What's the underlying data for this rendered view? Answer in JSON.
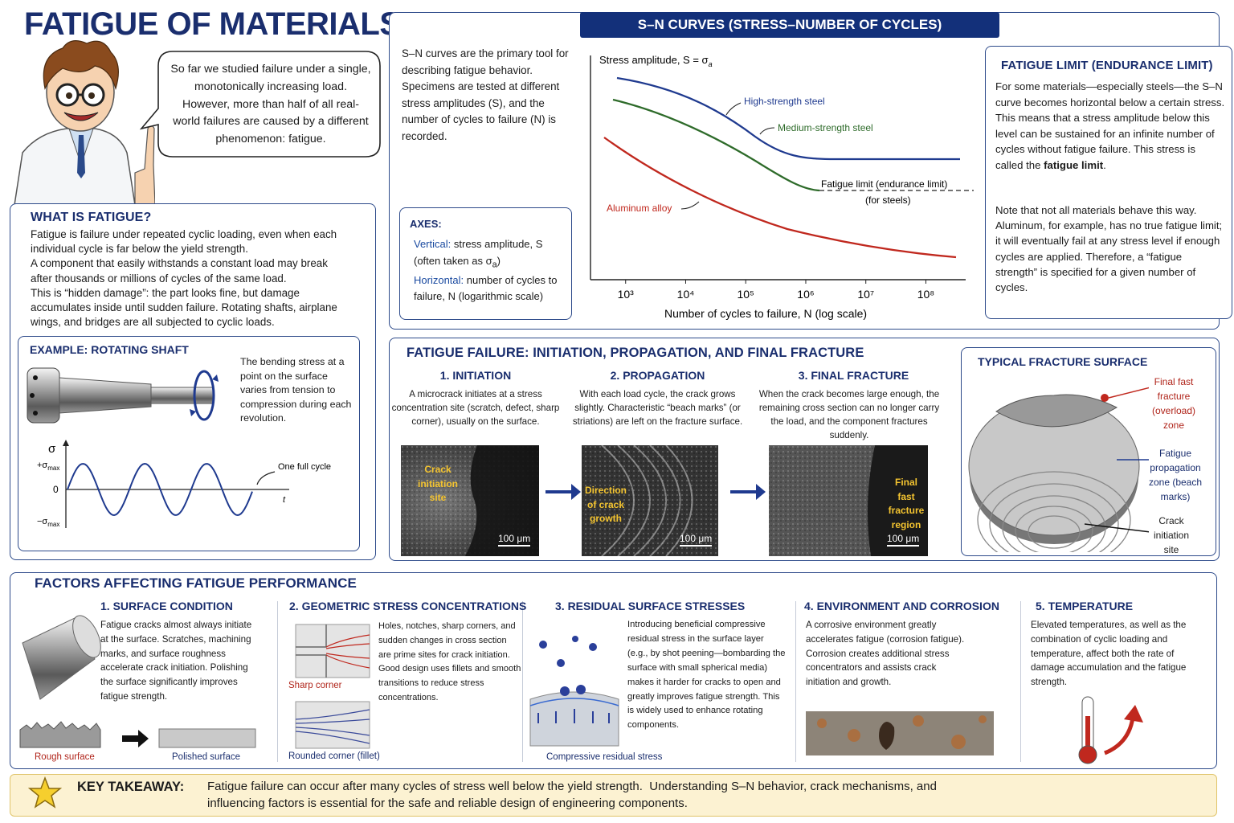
{
  "title": "FATIGUE OF MATERIALS",
  "speech": "So far we studied failure under a single, monotonically increasing load. However, more than half of all real-world failures are caused by a different phenomenon: fatigue.",
  "what_is": {
    "heading": "WHAT IS FATIGUE?",
    "paragraphs": [
      "Fatigue is failure under repeated cyclic loading, even when each individual cycle is far below the yield strength.",
      "A component that easily withstands a constant load may break after thousands or millions of cycles of the same load.",
      "This is “hidden damage”: the part looks fine, but damage accumulates inside until sudden failure. Rotating shafts, airplane wings, and bridges are all subjected to cyclic loads."
    ]
  },
  "example": {
    "heading": "EXAMPLE: ROTATING SHAFT",
    "text": "The bending stress at a point on the surface varies from tension to compression during each revolution.",
    "axis_y": "σ",
    "plus": {
      "sym": "+σ",
      "sub": "max"
    },
    "zero": "0",
    "minus": {
      "sym": "−σ",
      "sub": "max"
    },
    "axis_t": "t",
    "cycle_label": "One full cycle"
  },
  "sn": {
    "heading": "S–N CURVES (STRESS–NUMBER OF CYCLES)",
    "intro": "S–N curves are the primary tool for describing fatigue behavior. Specimens are tested at different stress amplitudes (S), and the number of cycles to failure (N) is recorded.",
    "axes": {
      "heading": "AXES:",
      "vertical_label": "Vertical:",
      "vertical_text": "stress amplitude, S (often taken as σ",
      "vertical_sub": "a",
      "vertical_end": ")",
      "horizontal_label": "Horizontal:",
      "horizontal_text": "number of cycles to failure, N (logarithmic scale)"
    },
    "chart": {
      "y_label": "Stress amplitude, S = σ",
      "y_label_sub": "a",
      "x_label": "Number of cycles to failure, N (log scale)",
      "xscale": "log",
      "xlim": [
        260,
        460000000
      ],
      "xticks": [
        {
          "value": 1000,
          "label": "10³"
        },
        {
          "value": 10000,
          "label": "10⁴"
        },
        {
          "value": 100000,
          "label": "10⁵"
        },
        {
          "value": 1000000,
          "label": "10⁶"
        },
        {
          "value": 10000000,
          "label": "10⁷"
        },
        {
          "value": 100000000,
          "label": "10⁸"
        }
      ],
      "series": [
        {
          "name": "High-strength steel",
          "color": "#1f3a8f"
        },
        {
          "name": "Medium-strength steel",
          "color": "#2e6b2a"
        },
        {
          "name": "Aluminum alloy",
          "color": "#c0281e"
        }
      ],
      "limit_label": "Fatigue limit (endurance limit)",
      "limit_sub": "(for steels)"
    }
  },
  "endurance": {
    "heading": "FATIGUE LIMIT (ENDURANCE LIMIT)",
    "p1": [
      "For some materials—especially steels—the S–N curve becomes horizontal below a certain stress. This means that a stress amplitude below this level can be sustained for an infinite number of cycles without fatigue failure. This stress is called the ",
      "fatigue limit",
      "."
    ],
    "p2": "Note that not all materials behave this way. Aluminum, for example, has no true fatigue limit; it will eventually fail at any stress level if enough cycles are applied. Therefore, a “fatigue strength” is specified for a given number of cycles."
  },
  "failure": {
    "heading": "FATIGUE FAILURE: INITIATION, PROPAGATION, AND FINAL FRACTURE",
    "stages": [
      {
        "title": "1. INITIATION",
        "text": "A microcrack initiates at a stress concentration site (scratch, defect, sharp corner), usually on the surface.",
        "image_label": "Crack initiation site",
        "scale": "100 μm"
      },
      {
        "title": "2. PROPAGATION",
        "text": "With each load cycle, the crack grows slightly. Characteristic “beach marks” (or striations) are left on the fracture surface.",
        "image_label": "Direction of crack growth",
        "scale": "100 μm"
      },
      {
        "title": "3. FINAL FRACTURE",
        "text": "When the crack becomes large enough, the remaining cross section can no longer carry the load, and the component fractures suddenly.",
        "image_label": "Final fast fracture region",
        "scale": "100 μm"
      }
    ]
  },
  "fracture_surface": {
    "heading": "TYPICAL FRACTURE SURFACE",
    "labels": [
      "Final fast fracture (overload) zone",
      "Fatigue propagation zone (beach marks)",
      "Crack initiation site"
    ]
  },
  "factors": {
    "heading": "FACTORS AFFECTING FATIGUE PERFORMANCE",
    "items": [
      {
        "title": "1. SURFACE CONDITION",
        "text": "Fatigue cracks almost always initiate at the surface. Scratches, machining marks, and surface roughness accelerate crack initiation. Polishing the surface significantly improves fatigue strength.",
        "captions": [
          "Rough surface",
          "Polished surface"
        ]
      },
      {
        "title": "2. GEOMETRIC STRESS CONCENTRATIONS",
        "text": "Holes, notches, sharp corners, and sudden changes in cross section are prime sites for crack initiation. Good design uses fillets and smooth transitions to reduce stress concentrations.",
        "captions": [
          "Sharp corner",
          "Rounded corner (fillet)"
        ]
      },
      {
        "title": "3. RESIDUAL SURFACE STRESSES",
        "text": "Introducing beneficial compressive residual stress in the surface layer (e.g., by shot peening—bombarding the surface with small spherical media) makes it harder for cracks to open and greatly improves fatigue strength. This is widely used to enhance rotating components.",
        "captions": [
          "Compressive residual stress"
        ]
      },
      {
        "title": "4. ENVIRONMENT AND CORROSION",
        "text": "A corrosive environment greatly accelerates fatigue (corrosion fatigue). Corrosion creates additional stress concentrators and assists crack initiation and growth."
      },
      {
        "title": "5. TEMPERATURE",
        "text": "Elevated temperatures, as well as the combination of cyclic loading and temperature, affect both the rate of damage accumulation and the fatigue strength."
      }
    ]
  },
  "takeaway": {
    "label": "KEY TAKEAWAY:",
    "text": "Fatigue failure can occur after many cycles of stress well below the yield strength.  Understanding S–N behavior, crack mechanisms, and influencing factors is essential for the safe and reliable design of engineering components."
  }
}
